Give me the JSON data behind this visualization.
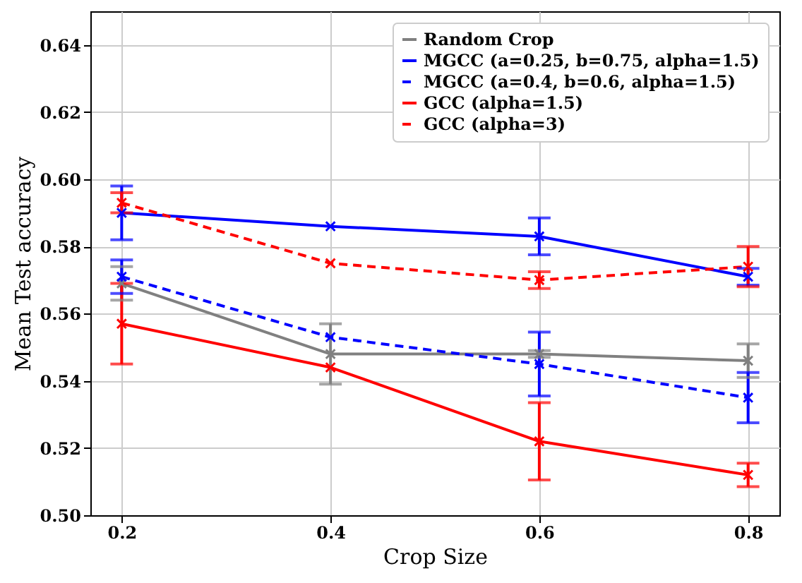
{
  "chart_data": {
    "type": "line",
    "xlabel": "Crop Size",
    "ylabel": "Mean Test accuracy",
    "x": [
      0.2,
      0.4,
      0.6,
      0.8
    ],
    "xlim": [
      0.17,
      0.83
    ],
    "xticks": [
      0.2,
      0.4,
      0.6,
      0.8
    ],
    "ylim": [
      0.5,
      0.65
    ],
    "yticks": [
      {
        "value": 0.5,
        "label": "0.50"
      },
      0.52,
      0.54,
      0.56,
      0.58,
      {
        "value": 0.6,
        "label": "0.60"
      },
      0.62,
      0.64
    ],
    "grid": true,
    "legend": "top right",
    "marker": "cross",
    "series": [
      {
        "name": "Random Crop",
        "color": "#808080",
        "line_style": "solid",
        "values": [
          0.569,
          0.548,
          0.548,
          0.546
        ],
        "errors": [
          0.005,
          0.009,
          0.001,
          0.005
        ]
      },
      {
        "name": "MGCC (a=0.25, b=0.75, alpha=1.5)",
        "color": "#0000ff",
        "line_style": "solid",
        "values": [
          0.59,
          0.586,
          0.583,
          0.571
        ],
        "errors": [
          0.008,
          null,
          0.0055,
          0.0025
        ]
      },
      {
        "name": "MGCC (a=0.4, b=0.6, alpha=1.5)",
        "color": "#0000ff",
        "line_style": "dashed",
        "values": [
          0.571,
          0.553,
          0.545,
          0.535
        ],
        "errors": [
          0.005,
          null,
          0.0095,
          0.0075
        ]
      },
      {
        "name": "GCC (alpha=1.5)",
        "color": "#ff0000",
        "line_style": "solid",
        "values": [
          0.557,
          0.544,
          0.522,
          0.512
        ],
        "errors": [
          0.012,
          null,
          0.0115,
          0.0035
        ]
      },
      {
        "name": "GCC (alpha=3)",
        "color": "#ff0000",
        "line_style": "dashed",
        "values": [
          0.593,
          0.575,
          0.57,
          0.574
        ],
        "errors": [
          0.003,
          null,
          0.0025,
          0.006
        ]
      }
    ]
  }
}
